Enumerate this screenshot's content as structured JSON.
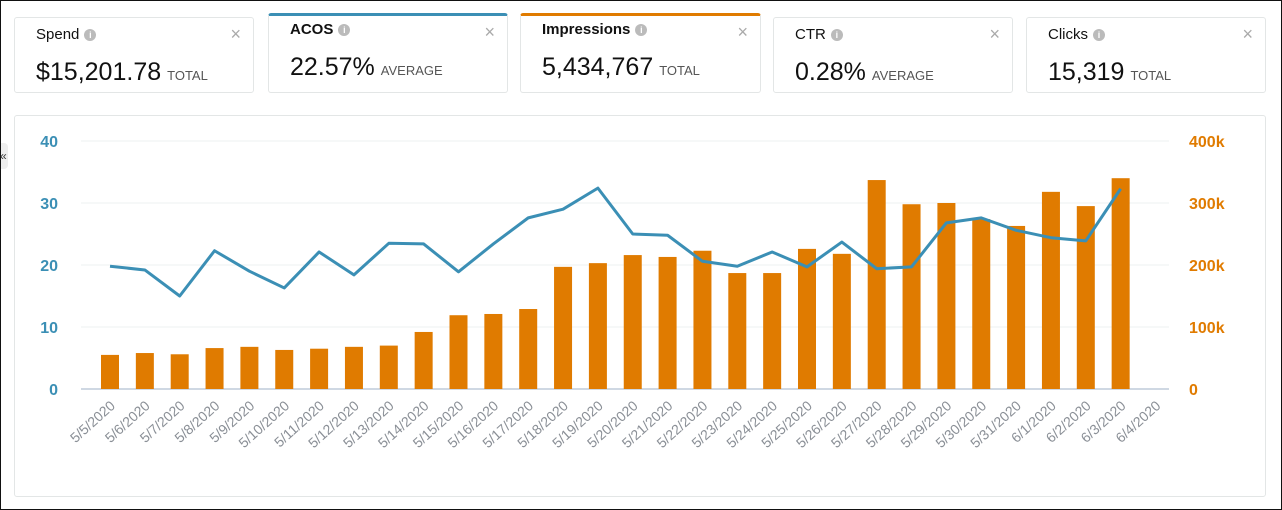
{
  "cards": [
    {
      "title": "Spend",
      "value": "$15,201.78",
      "unit": "TOTAL",
      "selected": null
    },
    {
      "title": "ACOS",
      "value": "22.57%",
      "unit": "AVERAGE",
      "selected": "#3b8fb5"
    },
    {
      "title": "Impressions",
      "value": "5,434,767",
      "unit": "TOTAL",
      "selected": "#e07b00"
    },
    {
      "title": "CTR",
      "value": "0.28%",
      "unit": "AVERAGE",
      "selected": null
    },
    {
      "title": "Clicks",
      "value": "15,319",
      "unit": "TOTAL",
      "selected": null
    }
  ],
  "icons": {
    "info": "i",
    "close": "×",
    "collapse": "«"
  },
  "chart_data": {
    "type": "bar+line",
    "categories": [
      "5/5/2020",
      "5/6/2020",
      "5/7/2020",
      "5/8/2020",
      "5/9/2020",
      "5/10/2020",
      "5/11/2020",
      "5/12/2020",
      "5/13/2020",
      "5/14/2020",
      "5/15/2020",
      "5/16/2020",
      "5/17/2020",
      "5/18/2020",
      "5/19/2020",
      "5/20/2020",
      "5/21/2020",
      "5/22/2020",
      "5/23/2020",
      "5/24/2020",
      "5/25/2020",
      "5/26/2020",
      "5/27/2020",
      "5/28/2020",
      "5/29/2020",
      "5/30/2020",
      "5/31/2020",
      "6/1/2020",
      "6/2/2020",
      "6/3/2020",
      "6/4/2020"
    ],
    "series": [
      {
        "name": "ACOS",
        "type": "line",
        "axis": "left",
        "color": "#3b8fb5",
        "values": [
          19.8,
          19.2,
          15.0,
          22.3,
          19.0,
          16.3,
          22.1,
          18.4,
          23.5,
          23.4,
          18.9,
          23.4,
          27.6,
          29.0,
          32.4,
          25.0,
          24.8,
          20.6,
          19.8,
          22.1,
          19.7,
          23.7,
          19.4,
          19.7,
          26.8,
          27.6,
          25.6,
          24.4,
          23.9,
          32.3,
          null
        ]
      },
      {
        "name": "Impressions",
        "type": "bar",
        "axis": "right",
        "color": "#e07b00",
        "values": [
          55000,
          58000,
          56000,
          66000,
          68000,
          63000,
          65000,
          68000,
          70000,
          92000,
          119000,
          121000,
          129000,
          197000,
          203000,
          216000,
          213000,
          223000,
          187000,
          187000,
          226000,
          218000,
          337000,
          298000,
          300000,
          274000,
          263000,
          318000,
          295000,
          340000,
          null
        ]
      }
    ],
    "y_left": {
      "ticks": [
        "0",
        "10",
        "20",
        "30",
        "40"
      ],
      "range": [
        0,
        40
      ],
      "color": "#3b8fb5"
    },
    "y_right": {
      "ticks": [
        "0",
        "100k",
        "200k",
        "300k",
        "400k"
      ],
      "range": [
        0,
        400000
      ],
      "color": "#e07b00"
    },
    "grid": true
  }
}
